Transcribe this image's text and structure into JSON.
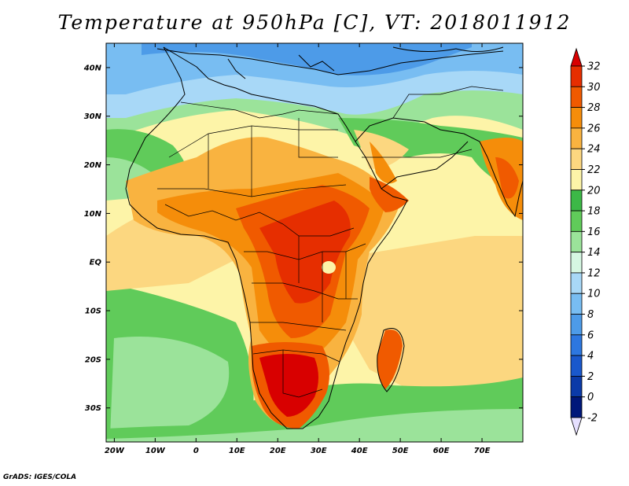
{
  "title": "Temperature at 950hPa [C], VT: 2018011912",
  "credit": "GrADS: IGES/COLA",
  "map": {
    "lon_range": [
      -22,
      80
    ],
    "lat_range": [
      -37,
      45
    ],
    "x_ticks": [
      {
        "lon": -20,
        "label": "20W"
      },
      {
        "lon": -10,
        "label": "10W"
      },
      {
        "lon": 0,
        "label": "0"
      },
      {
        "lon": 10,
        "label": "10E"
      },
      {
        "lon": 20,
        "label": "20E"
      },
      {
        "lon": 30,
        "label": "30E"
      },
      {
        "lon": 40,
        "label": "40E"
      },
      {
        "lon": 50,
        "label": "50E"
      },
      {
        "lon": 60,
        "label": "60E"
      },
      {
        "lon": 70,
        "label": "70E"
      }
    ],
    "y_ticks": [
      {
        "lat": 40,
        "label": "40N"
      },
      {
        "lat": 30,
        "label": "30N"
      },
      {
        "lat": 20,
        "label": "20N"
      },
      {
        "lat": 10,
        "label": "10N"
      },
      {
        "lat": 0,
        "label": "EQ"
      },
      {
        "lat": -10,
        "label": "10S"
      },
      {
        "lat": -20,
        "label": "20S"
      },
      {
        "lat": -30,
        "label": "30S"
      }
    ]
  },
  "colorbar": {
    "levels": [
      "32",
      "30",
      "28",
      "26",
      "24",
      "22",
      "20",
      "18",
      "16",
      "14",
      "12",
      "10",
      "8",
      "6",
      "4",
      "2",
      "0",
      "-2"
    ],
    "colors": {
      "above_32": "#d80000",
      "30_32": "#e62e00",
      "28_30": "#f05a00",
      "26_28": "#f58d0a",
      "24_26": "#f9b340",
      "22_24": "#fcd780",
      "20_22": "#fdf4a8",
      "18_20": "#3cb847",
      "16_18": "#60cb5a",
      "14_16": "#9be39a",
      "12_14": "#d6f7e2",
      "10_12": "#a8d8f7",
      "8_10": "#78bdf2",
      "6_8": "#4d9be8",
      "4_6": "#2d77e0",
      "2_4": "#1a58cc",
      "0_2": "#0b3aa8",
      "-2_0": "#00177a",
      "below_-2": "#e6e0ff"
    }
  }
}
